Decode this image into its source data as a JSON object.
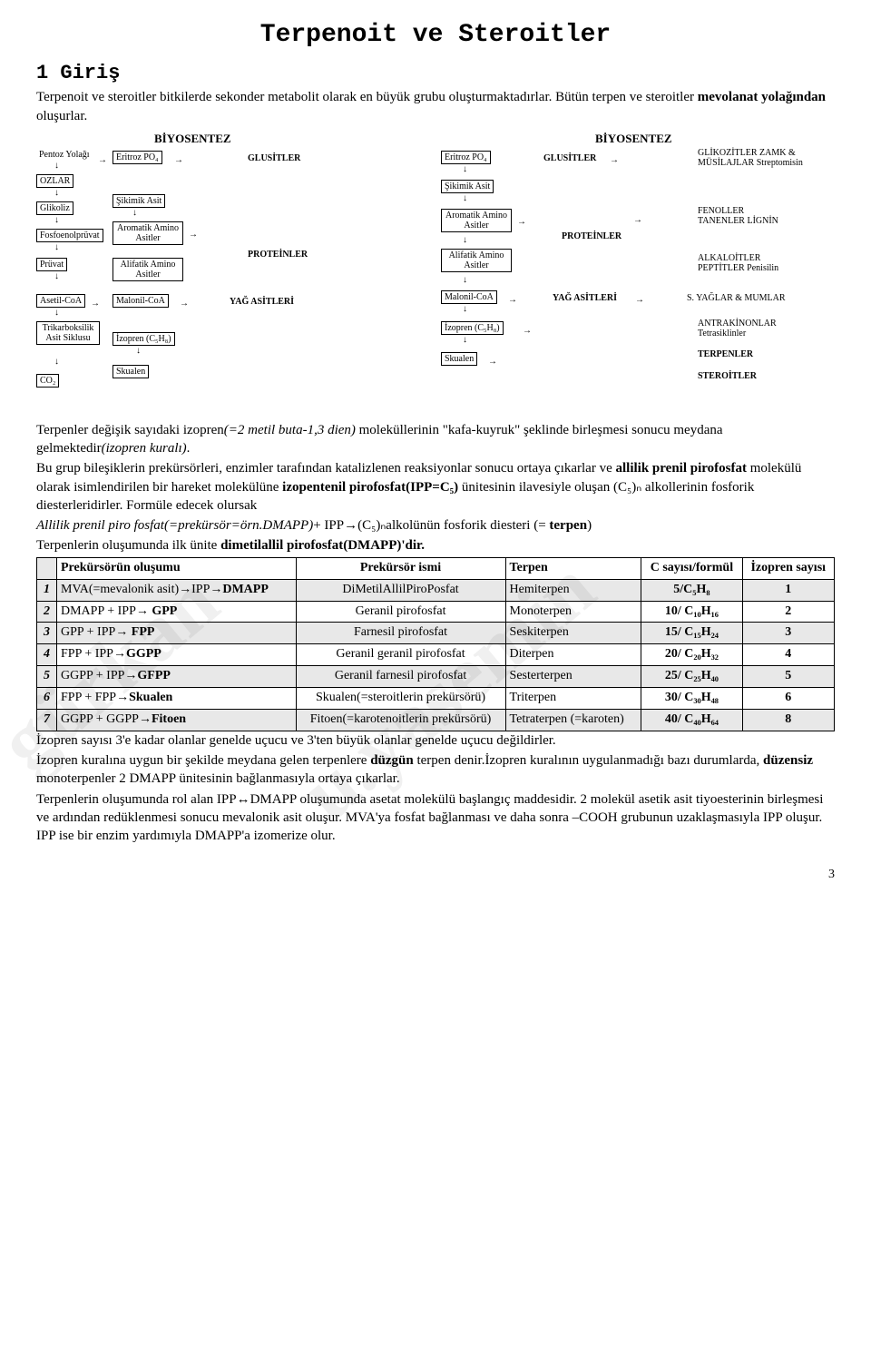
{
  "title": "Terpenoit ve Steroitler",
  "section_heading": "1  Giriş",
  "intro_p1_a": "Terpenoit ve steroitler bitkilerde sekonder metabolit olarak en büyük grubu oluşturmaktadırlar. Bütün terpen ve steroitler ",
  "intro_p1_b": "mevolanat yolağından ",
  "intro_p1_c": "oluşurlar.",
  "watermark1": "gürkan",
  "watermark2": "u.yasemin",
  "flow_left": {
    "title": "BİYOSENTEZ",
    "nodes": {
      "pentoz": "Pentoz Yolağı",
      "eritroz": "Eritroz PO₄",
      "glusitler": "GLUSİTLER",
      "ozlar": "OZLAR",
      "glikoliz": "Glikoliz",
      "sikimik": "Şikimik Asit",
      "fosfoenol": "Fosfoenolprüvat",
      "aromatik": "Aromatik\nAmino Asitler",
      "proteinler": "PROTEİNLER",
      "pruvat": "Prüvat",
      "alifatik": "Alifatik\nAmino Asitler",
      "asetil": "Asetil-CoA",
      "malonil": "Malonil-CoA",
      "yag": "YAĞ ASİTLERİ",
      "tka": "Trikarboksilik\nAsit\nSiklusu",
      "izopren": "İzopren (C₅H₈)",
      "co2": "CO₂",
      "skualen": "Skualen"
    }
  },
  "flow_right": {
    "title": "BİYOSENTEZ",
    "nodes": {
      "eritroz": "Eritroz PO₄",
      "glusitler": "GLUSİTLER",
      "glikozitler": "GLİKOZİTLER\nZAMK & MÜSİLAJLAR\nStreptomisin",
      "sikimik": "Şikimik Asit",
      "aromatik": "Aromatik\nAmino Asitler",
      "proteinler": "PROTEİNLER",
      "fenoller": "FENOLLER\nTANENLER\nLİGNİN",
      "alifatik": "Alifatik\nAmino Asitler",
      "alkaloitler": "ALKALOİTLER\nPEPTİTLER\nPenisilin",
      "malonil": "Malonil-CoA",
      "yag": "YAĞ ASİTLERİ",
      "syaglar": "S. YAĞLAR & MUMLAR",
      "izopren": "İzopren (C₅H₈)",
      "antrakinon": "ANTRAKİNONLAR\nTetrasiklinler",
      "skualen": "Skualen",
      "terpenler": "TERPENLER",
      "steroitler": "STEROİTLER"
    }
  },
  "mid_p1_a": "Terpenler değişik sayıdaki izopren",
  "mid_p1_b": "(=2 metil buta-1,3 dien)",
  "mid_p1_c": " moleküllerinin \"kafa-kuyruk\" şeklinde birleşmesi sonucu meydana gelmektedir",
  "mid_p1_d": "(izopren kuralı)",
  "mid_p1_e": ".",
  "mid_p2_a": "Bu grup bileşiklerin prekürsörleri, enzimler tarafından katalizlenen reaksiyonlar sonucu ortaya çıkarlar ve ",
  "mid_p2_b": "allilik prenil pirofosfat",
  "mid_p2_c": " molekülü olarak isimlendirilen bir hareket molekülüne ",
  "mid_p2_d": "izopentenil pirofosfat(IPP=C₅)",
  "mid_p2_e": " ünitesinin ilavesiyle oluşan (C₅)ₙ alkollerinin fosforik diesterleridirler. Formüle edecek olursak",
  "mid_p3_a": "Allilik prenil piro fosfat(=prekürsör=örn.DMAPP)",
  "mid_p3_b": "+ IPP→(C₅)ₙalkolünün fosforik diesteri (= ",
  "mid_p3_c": "terpen",
  "mid_p3_d": ")",
  "mid_p4_a": "Terpenlerin oluşumunda ilk ünite ",
  "mid_p4_b": "dimetilallil pirofosfat(DMAPP)'dir.",
  "table": {
    "headers": {
      "h1": "Prekürsörün oluşumu",
      "h2": "Prekürsör ismi",
      "h3": "Terpen",
      "h4": "C sayısı/formül",
      "h5": "İzopren sayısı"
    },
    "rows": [
      {
        "n": "1",
        "shaded": true,
        "c1": "MVA(=mevalonik asit)→IPP→DMAPP",
        "c1_bold": "DMAPP",
        "c2": "DiMetilAllilPiroPosfat",
        "c3": "Hemiterpen",
        "c4": "5/C₅H₈",
        "c5": "1"
      },
      {
        "n": "2",
        "shaded": false,
        "c1": "DMAPP + IPP→ GPP",
        "c1_bold": "GPP",
        "c2": "Geranil pirofosfat",
        "c3": "Monoterpen",
        "c4": "10/ C₁₀H₁₆",
        "c5": "2"
      },
      {
        "n": "3",
        "shaded": true,
        "c1": "GPP + IPP→ FPP",
        "c1_bold": "FPP",
        "c2": "Farnesil pirofosfat",
        "c3": "Seskiterpen",
        "c4": "15/ C₁₅H₂₄",
        "c5": "3"
      },
      {
        "n": "4",
        "shaded": false,
        "c1": "FPP + IPP→GGPP",
        "c1_bold": "GGPP",
        "c2": "Geranil geranil pirofosfat",
        "c3": "Diterpen",
        "c4": "20/ C₂₀H₃₂",
        "c5": "4"
      },
      {
        "n": "5",
        "shaded": true,
        "c1": "GGPP + IPP→GFPP",
        "c1_bold": "GFPP",
        "c2": "Geranil farnesil pirofosfat",
        "c3": "Sesterterpen",
        "c4": "25/ C₂₅H₄₀",
        "c5": "5"
      },
      {
        "n": "6",
        "shaded": false,
        "c1": "FPP + FPP→Skualen",
        "c1_bold": "Skualen",
        "c2": "Skualen(=steroitlerin prekürsörü)",
        "c3": "Triterpen",
        "c4": "30/ C₃₀H₄₈",
        "c5": "6"
      },
      {
        "n": "7",
        "shaded": true,
        "c1": "GGPP + GGPP→Fitoen",
        "c1_bold": "Fitoen",
        "c2": "Fitoen(=karotenoitlerin prekürsörü)",
        "c3": "Tetraterpen (=karoten)",
        "c4": "40/ C₄₀H₆₄",
        "c5": "8"
      }
    ]
  },
  "end_p1": "İzopren sayısı 3'e kadar olanlar genelde uçucu ve 3'ten büyük olanlar genelde uçucu değildirler.",
  "end_p2_a": "İzopren kuralına uygun bir şekilde meydana gelen terpenlere ",
  "end_p2_b": "düzgün",
  "end_p2_c": " terpen denir.İzopren kuralının uygulanmadığı bazı durumlarda, ",
  "end_p2_d": "düzensiz",
  "end_p2_e": " monoterpenler 2 DMAPP ünitesinin bağlanmasıyla ortaya çıkarlar.",
  "end_p3": "Terpenlerin oluşumunda rol alan IPP↔DMAPP oluşumunda asetat molekülü başlangıç maddesidir. 2 molekül asetik asit tiyoesterinin  birleşmesi ve ardından redüklenmesi sonucu mevalonik asit oluşur. MVA'ya fosfat bağlanması ve daha sonra –COOH grubunun uzaklaşmasıyla IPP oluşur. IPP ise bir enzim yardımıyla DMAPP'a izomerize olur.",
  "page_number": "3"
}
